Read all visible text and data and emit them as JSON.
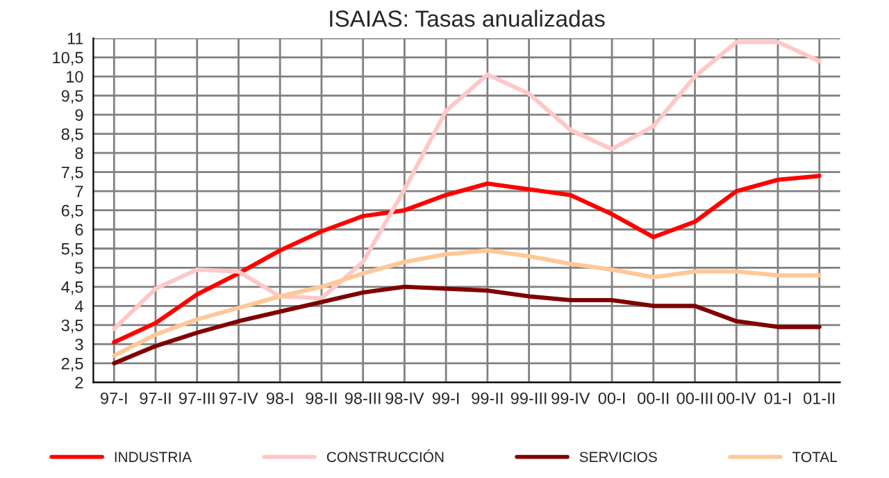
{
  "chart_data": {
    "type": "line",
    "title": "ISAIAS: Tasas anualizadas",
    "categories": [
      "97-I",
      "97-II",
      "97-III",
      "97-IV",
      "98-I",
      "98-II",
      "98-III",
      "98-IV",
      "99-I",
      "99-II",
      "99-III",
      "99-IV",
      "00-I",
      "00-II",
      "00-III",
      "00-IV",
      "01-I",
      "01-II"
    ],
    "series": [
      {
        "name": "INDUSTRIA",
        "color": "#ff0000",
        "values": [
          3.05,
          3.55,
          4.3,
          4.85,
          5.45,
          5.95,
          6.35,
          6.5,
          6.9,
          7.2,
          7.05,
          6.9,
          6.4,
          5.8,
          6.2,
          7.0,
          7.3,
          7.4
        ]
      },
      {
        "name": "CONSTRUCCIÓN",
        "color": "#ffc8c8",
        "values": [
          3.4,
          4.45,
          4.95,
          4.9,
          4.25,
          4.2,
          5.15,
          7.05,
          9.1,
          10.05,
          9.55,
          8.6,
          8.1,
          8.7,
          10.0,
          10.9,
          10.9,
          10.4
        ]
      },
      {
        "name": "SERVICIOS",
        "color": "#800000",
        "values": [
          2.5,
          2.95,
          3.3,
          3.6,
          3.85,
          4.1,
          4.35,
          4.5,
          4.45,
          4.4,
          4.25,
          4.15,
          4.15,
          4.0,
          4.0,
          3.6,
          3.45,
          3.45
        ]
      },
      {
        "name": "TOTAL",
        "color": "#ffc896",
        "values": [
          2.7,
          3.25,
          3.65,
          3.95,
          4.25,
          4.5,
          4.85,
          5.15,
          5.35,
          5.45,
          5.3,
          5.1,
          4.95,
          4.75,
          4.9,
          4.9,
          4.8,
          4.8
        ]
      }
    ],
    "ylim": [
      2,
      11
    ],
    "yticks": [
      2,
      {
        "value": 2.5,
        "label": "2,5"
      },
      3,
      {
        "value": 3.5,
        "label": "3,5"
      },
      4,
      {
        "value": 4.5,
        "label": "4,5"
      },
      5,
      {
        "value": 5.5,
        "label": "5,5"
      },
      6,
      {
        "value": 6.5,
        "label": "6,5"
      },
      7,
      {
        "value": 7.5,
        "label": "7,5"
      },
      8,
      {
        "value": 8.5,
        "label": "8,5"
      },
      9,
      {
        "value": 9.5,
        "label": "9,5"
      },
      10,
      {
        "value": 10.5,
        "label": "10,5"
      },
      11
    ],
    "grid": true,
    "legend": "bottom",
    "marker": "none",
    "line_style": "solid"
  }
}
